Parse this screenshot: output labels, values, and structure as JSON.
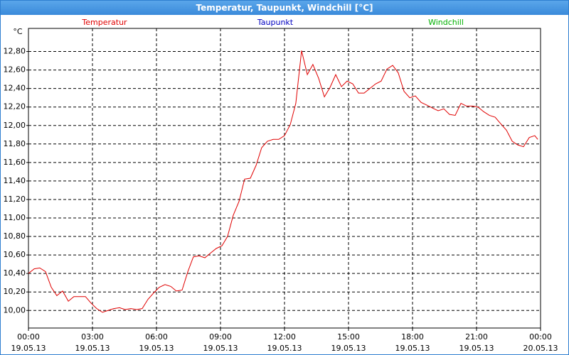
{
  "window_title": "Temperatur, Taupunkt, Windchill [°C]",
  "chart_data": {
    "type": "line",
    "y_unit": "°C",
    "legend": [
      {
        "name": "Temperatur",
        "color": "#e00000"
      },
      {
        "name": "Taupunkt",
        "color": "#0000c0"
      },
      {
        "name": "Windchill",
        "color": "#00b000"
      }
    ],
    "x": [
      0,
      0.27,
      0.53,
      0.8,
      1.07,
      1.33,
      1.6,
      1.87,
      2.13,
      2.4,
      2.67,
      2.93,
      3.2,
      3.47,
      3.73,
      4,
      4.27,
      4.53,
      4.8,
      5.07,
      5.33,
      5.6,
      5.87,
      6.13,
      6.4,
      6.67,
      6.93,
      7.2,
      7.47,
      7.73,
      8,
      8.27,
      8.53,
      8.8,
      9.07,
      9.33,
      9.6,
      9.87,
      10.13,
      10.4,
      10.67,
      10.93,
      11.2,
      11.47,
      11.73,
      12,
      12.27,
      12.53,
      12.8,
      13.07,
      13.33,
      13.6,
      13.87,
      14.13,
      14.4,
      14.67,
      14.93,
      15.2,
      15.47,
      15.73,
      16,
      16.27,
      16.53,
      16.8,
      17.07,
      17.33,
      17.6,
      17.87,
      18.13,
      18.4,
      18.67,
      18.93,
      19.2,
      19.47,
      19.73,
      20,
      20.27,
      20.53,
      20.8,
      21.07,
      21.33,
      21.6,
      21.87,
      22.13,
      22.4,
      22.67,
      22.93,
      23.2,
      23.47,
      23.73,
      23.87
    ],
    "series": [
      {
        "name": "Temperatur",
        "color": "#e00000",
        "values": [
          10.4,
          10.45,
          10.46,
          10.42,
          10.25,
          10.16,
          10.21,
          10.1,
          10.15,
          10.15,
          10.15,
          10.08,
          10.02,
          9.98,
          10.0,
          10.02,
          10.03,
          10.01,
          10.02,
          10.01,
          10.02,
          10.12,
          10.19,
          10.25,
          10.28,
          10.26,
          10.21,
          10.22,
          10.42,
          10.58,
          10.59,
          10.57,
          10.62,
          10.67,
          10.7,
          10.8,
          11.03,
          11.18,
          11.42,
          11.43,
          11.57,
          11.76,
          11.83,
          11.85,
          11.85,
          11.89,
          12.01,
          12.24,
          12.81,
          12.55,
          12.66,
          12.51,
          12.31,
          12.41,
          12.55,
          12.42,
          12.48,
          12.45,
          12.35,
          12.35,
          12.4,
          12.45,
          12.48,
          12.61,
          12.65,
          12.57,
          12.37,
          12.3,
          12.32,
          12.25,
          12.22,
          12.19,
          12.16,
          12.18,
          12.12,
          12.11,
          12.24,
          12.21,
          12.21,
          12.2,
          12.15,
          12.11,
          12.09,
          12.02,
          11.95,
          11.83,
          11.79,
          11.77,
          11.87,
          11.89,
          11.85
        ]
      }
    ],
    "xlim": [
      0,
      24
    ],
    "xticks": [
      {
        "value": 0,
        "label": "00:00",
        "date": "19.05.13"
      },
      {
        "value": 3,
        "label": "03:00",
        "date": "19.05.13"
      },
      {
        "value": 6,
        "label": "06:00",
        "date": "19.05.13"
      },
      {
        "value": 9,
        "label": "09:00",
        "date": "19.05.13"
      },
      {
        "value": 12,
        "label": "12:00",
        "date": "19.05.13"
      },
      {
        "value": 15,
        "label": "15:00",
        "date": "19.05.13"
      },
      {
        "value": 18,
        "label": "18:00",
        "date": "19.05.13"
      },
      {
        "value": 21,
        "label": "21:00",
        "date": "19.05.13"
      },
      {
        "value": 24,
        "label": "00:00",
        "date": "20.05.13"
      }
    ],
    "ylim": [
      9.81,
      13.05
    ],
    "yticks": [
      {
        "value": 10,
        "label": "10,00"
      },
      {
        "value": 10.2,
        "label": "10,20"
      },
      {
        "value": 10.4,
        "label": "10,40"
      },
      {
        "value": 10.6,
        "label": "10,60"
      },
      {
        "value": 10.8,
        "label": "10,80"
      },
      {
        "value": 11,
        "label": "11,00"
      },
      {
        "value": 11.2,
        "label": "11,20"
      },
      {
        "value": 11.4,
        "label": "11,40"
      },
      {
        "value": 11.6,
        "label": "11,60"
      },
      {
        "value": 11.8,
        "label": "11,80"
      },
      {
        "value": 12,
        "label": "12,00"
      },
      {
        "value": 12.2,
        "label": "12,20"
      },
      {
        "value": 12.4,
        "label": "12,40"
      },
      {
        "value": 12.6,
        "label": "12,60"
      },
      {
        "value": 12.8,
        "label": "12,80"
      }
    ],
    "grid": true
  }
}
